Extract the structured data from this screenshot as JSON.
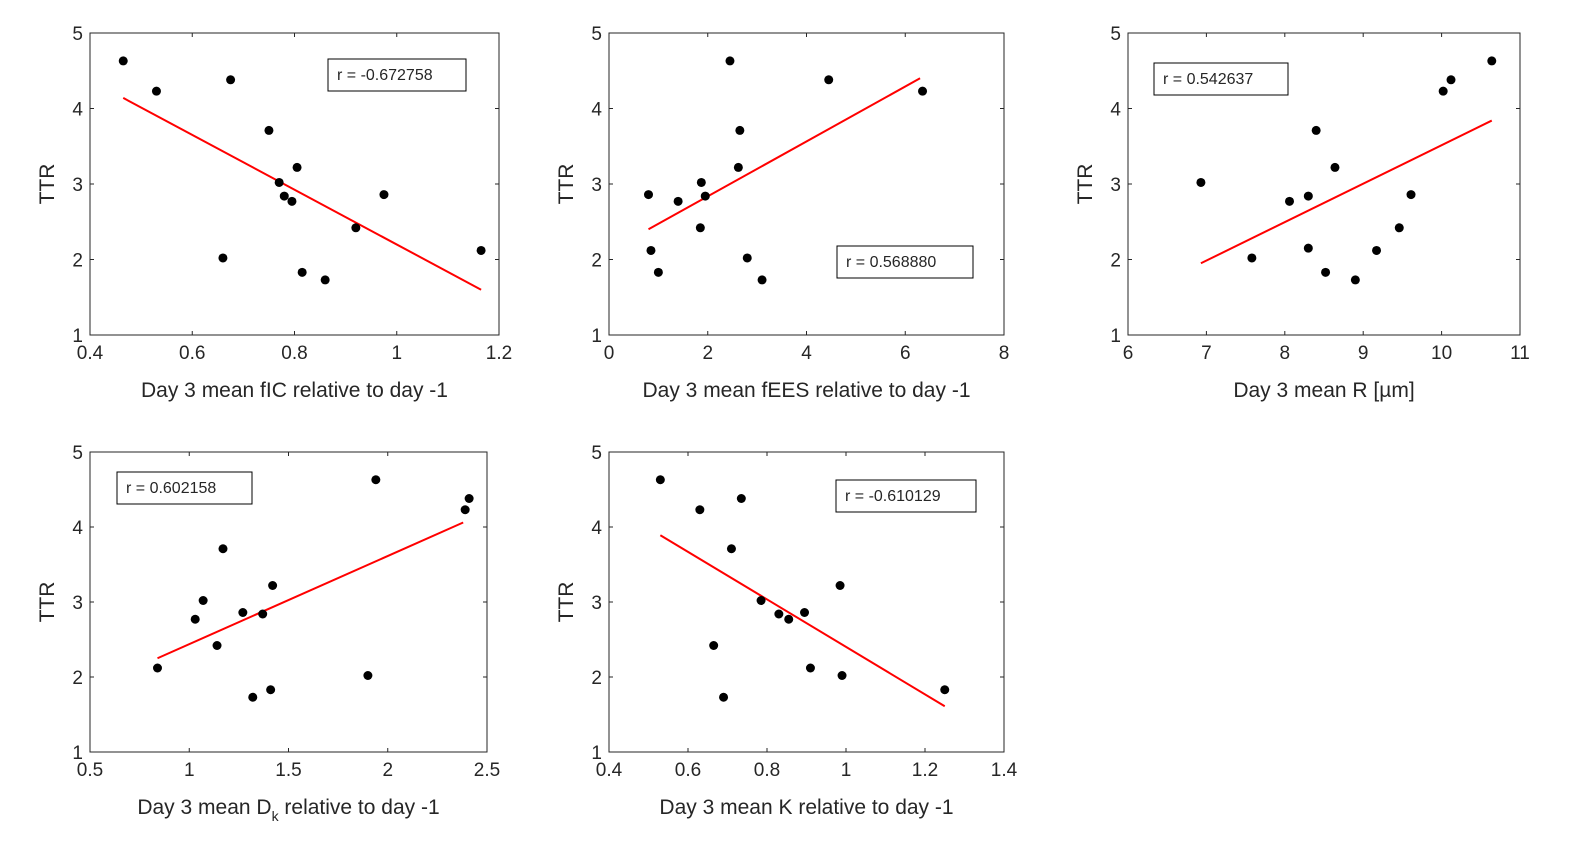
{
  "chart_data": [
    {
      "type": "scatter",
      "xlabel": "Day 3 mean fIC relative to day -1",
      "ylabel": "TTR",
      "xlim": [
        0.4,
        1.2
      ],
      "ylim": [
        1,
        5
      ],
      "xticks": [
        "0.4",
        "0.6",
        "0.8",
        "1",
        "1.2"
      ],
      "yticks": [
        "1",
        "2",
        "3",
        "4",
        "5"
      ],
      "annotation": "r = -0.672758",
      "annotation_position": "top-right",
      "x": [
        0.465,
        0.53,
        0.675,
        0.66,
        0.75,
        0.77,
        0.78,
        0.795,
        0.805,
        0.815,
        0.86,
        0.92,
        0.975,
        1.165
      ],
      "y": [
        4.63,
        4.23,
        4.38,
        2.02,
        3.71,
        3.02,
        2.84,
        2.77,
        3.22,
        1.83,
        1.73,
        2.42,
        2.86,
        2.12
      ],
      "fit": {
        "x": [
          0.465,
          1.165
        ],
        "y": [
          4.14,
          1.6
        ]
      }
    },
    {
      "type": "scatter",
      "xlabel": "Day 3 mean fEES relative to day -1",
      "ylabel": "TTR",
      "xlim": [
        0,
        8
      ],
      "ylim": [
        1,
        5
      ],
      "xticks": [
        "0",
        "2",
        "4",
        "6",
        "8"
      ],
      "yticks": [
        "1",
        "2",
        "3",
        "4",
        "5"
      ],
      "annotation": "r = 0.568880",
      "annotation_position": "bottom-right",
      "x": [
        0.8,
        0.85,
        1.0,
        1.4,
        1.85,
        1.87,
        1.95,
        2.45,
        2.65,
        2.62,
        2.8,
        3.1,
        4.45,
        6.35
      ],
      "y": [
        2.86,
        2.12,
        1.83,
        2.77,
        2.42,
        3.02,
        2.84,
        4.63,
        3.71,
        3.22,
        2.02,
        1.73,
        4.38,
        4.23
      ],
      "fit": {
        "x": [
          0.8,
          6.3
        ],
        "y": [
          2.4,
          4.4
        ]
      }
    },
    {
      "type": "scatter",
      "xlabel": "Day 3 mean R [µm]",
      "ylabel": "TTR",
      "xlim": [
        6,
        11
      ],
      "ylim": [
        1,
        5
      ],
      "xticks": [
        "6",
        "7",
        "8",
        "9",
        "10",
        "11"
      ],
      "yticks": [
        "1",
        "2",
        "3",
        "4",
        "5"
      ],
      "annotation": "r = 0.542637",
      "annotation_position": "top-left",
      "x": [
        6.93,
        7.58,
        8.06,
        8.3,
        8.3,
        8.4,
        8.52,
        8.64,
        8.9,
        9.17,
        9.46,
        9.61,
        10.02,
        10.12,
        10.64
      ],
      "y": [
        3.02,
        2.02,
        2.77,
        2.84,
        2.15,
        3.71,
        1.83,
        3.22,
        1.73,
        2.12,
        2.42,
        2.86,
        4.23,
        4.38,
        4.63
      ],
      "fit": {
        "x": [
          6.93,
          10.64
        ],
        "y": [
          1.95,
          3.84
        ]
      }
    },
    {
      "type": "scatter",
      "xlabel": "Day 3 mean D<sub>k</sub> relative to day -1",
      "xlabel_parts": {
        "prefix": "Day 3 mean D",
        "subscript": "k",
        "suffix": " relative to day -1"
      },
      "ylabel": "TTR",
      "xlim": [
        0.5,
        2.5
      ],
      "ylim": [
        1,
        5
      ],
      "xticks": [
        "0.5",
        "1",
        "1.5",
        "2",
        "2.5"
      ],
      "yticks": [
        "1",
        "2",
        "3",
        "4",
        "5"
      ],
      "annotation": "r = 0.602158",
      "annotation_position": "top-left",
      "x": [
        0.84,
        1.03,
        1.07,
        1.14,
        1.17,
        1.27,
        1.32,
        1.37,
        1.41,
        1.42,
        1.9,
        1.94,
        2.39,
        2.41
      ],
      "y": [
        2.12,
        2.77,
        3.02,
        2.42,
        3.71,
        2.86,
        1.73,
        2.84,
        1.83,
        3.22,
        2.02,
        4.63,
        4.23,
        4.38
      ],
      "fit": {
        "x": [
          0.84,
          2.38
        ],
        "y": [
          2.25,
          4.06
        ]
      }
    },
    {
      "type": "scatter",
      "xlabel": "Day 3 mean K relative to day -1",
      "ylabel": "TTR",
      "xlim": [
        0.4,
        1.4
      ],
      "ylim": [
        1,
        5
      ],
      "xticks": [
        "0.4",
        "0.6",
        "0.8",
        "1",
        "1.2",
        "1.4"
      ],
      "yticks": [
        "1",
        "2",
        "3",
        "4",
        "5"
      ],
      "annotation": "r = -0.610129",
      "annotation_position": "top-right",
      "x": [
        0.53,
        0.63,
        0.665,
        0.69,
        0.71,
        0.735,
        0.785,
        0.83,
        0.855,
        0.895,
        0.91,
        0.985,
        0.99,
        1.25
      ],
      "y": [
        4.63,
        4.23,
        2.42,
        1.73,
        3.71,
        4.38,
        3.02,
        2.84,
        2.77,
        2.86,
        2.12,
        3.22,
        2.02,
        1.83
      ],
      "fit": {
        "x": [
          0.53,
          1.25
        ],
        "y": [
          3.89,
          1.61
        ]
      }
    }
  ],
  "style": {
    "point_color": "#000000",
    "fit_color": "#ff0000",
    "axis_color": "#262626"
  }
}
